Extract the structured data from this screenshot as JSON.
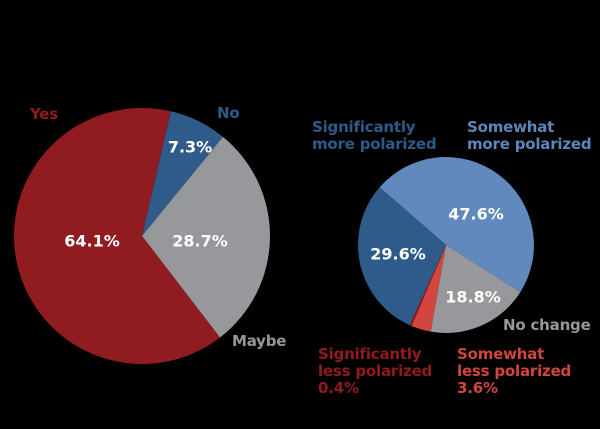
{
  "chart_data": [
    {
      "type": "pie",
      "title": "",
      "categories": [
        "Yes",
        "No",
        "Maybe"
      ],
      "values": [
        64.1,
        7.3,
        28.7
      ],
      "value_labels": [
        "64.1%",
        "7.3%",
        "28.7%"
      ],
      "colors": [
        "#901b20",
        "#2f5b8a",
        "#96989c"
      ],
      "legend_position": "labels-around-pie"
    },
    {
      "type": "pie",
      "title": "",
      "categories": [
        "Somewhat more polarized",
        "No change",
        "Somewhat less polarized",
        "Significantly less polarized",
        "Significantly more polarized"
      ],
      "values": [
        47.6,
        18.8,
        3.6,
        0.4,
        29.6
      ],
      "value_labels": [
        "47.6%",
        "18.8%",
        "3.6%",
        "0.4%",
        "29.6%"
      ],
      "colors": [
        "#6289bd",
        "#96989c",
        "#d2463f",
        "#901b20",
        "#2f5b8a"
      ],
      "legend_position": "labels-around-pie"
    }
  ],
  "left_pie": {
    "labels": {
      "yes": "Yes",
      "no": "No",
      "maybe": "Maybe"
    },
    "values": {
      "yes": "64.1%",
      "no": "7.3%",
      "maybe": "28.7%"
    }
  },
  "right_pie": {
    "labels": {
      "sig_more_line1": "Significantly",
      "sig_more_line2": "more polarized",
      "some_more_line1": "Somewhat",
      "some_more_line2": "more polarized",
      "no_change": "No change",
      "sig_less_line1": "Significantly",
      "sig_less_line2": "less polarized",
      "sig_less_value": "0.4%",
      "some_less_line1": "Somewhat",
      "some_less_line2": "less polarized",
      "some_less_value": "3.6%"
    },
    "values": {
      "some_more": "47.6%",
      "sig_more": "29.6%",
      "no_change": "18.8%"
    }
  }
}
